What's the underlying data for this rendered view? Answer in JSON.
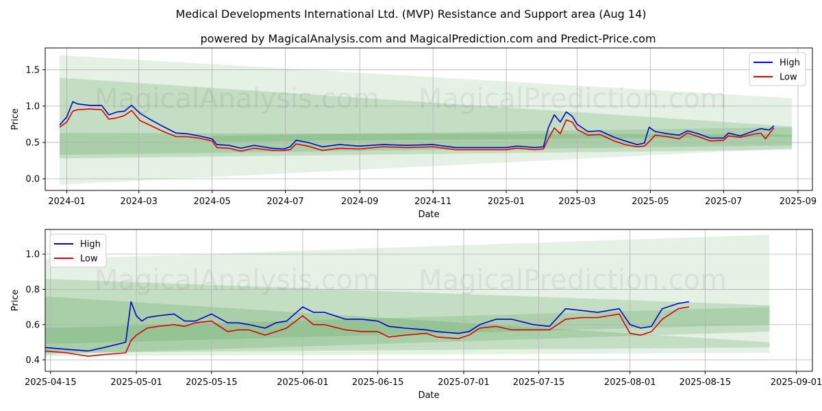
{
  "title": "Medical Developments International Ltd. (MVP) Resistance and Support area (Aug 14)",
  "subtitle": "powered by MagicalAnalysis.com and MagicalPrediction.com and Predict-Price.com",
  "watermarks": [
    "MagicalAnalysis.com",
    "MagicalPrediction.com"
  ],
  "colors": {
    "high": "#0000cc",
    "low": "#dd0000",
    "band": "#2e8b2e",
    "grid": "#b0b0b0"
  },
  "chart_data": [
    {
      "type": "line",
      "xlabel": "Date",
      "ylabel": "Price",
      "xlim": [
        "2023-12-14",
        "2025-09-13"
      ],
      "ylim": [
        -0.16,
        1.8
      ],
      "xticks": [
        "2024-01-01",
        "2024-03-01",
        "2024-05-01",
        "2024-07-01",
        "2024-09-01",
        "2024-11-01",
        "2025-01-01",
        "2025-03-01",
        "2025-05-01",
        "2025-07-01",
        "2025-09-01"
      ],
      "xtick_labels": [
        "2024-01",
        "2024-03",
        "2024-05",
        "2024-07",
        "2024-09",
        "2024-11",
        "2025-01",
        "2025-03",
        "2025-05",
        "2025-07",
        "2025-09"
      ],
      "yticks": [
        0.0,
        0.5,
        1.0,
        1.5
      ],
      "ytick_labels": [
        "0.0",
        "0.5",
        "1.0",
        "1.5"
      ],
      "legend": {
        "position": "upper right",
        "entries": [
          "High",
          "Low"
        ]
      },
      "bands": [
        {
          "x": [
            "2023-12-26",
            "2025-08-27"
          ],
          "upper": [
            1.7,
            1.11
          ],
          "lower": [
            -0.08,
            0.42
          ],
          "opacity": 0.12
        },
        {
          "x": [
            "2023-12-26",
            "2025-08-27"
          ],
          "upper": [
            1.39,
            0.72
          ],
          "lower": [
            0.28,
            0.4
          ],
          "opacity": 0.18
        },
        {
          "x": [
            "2023-12-26",
            "2025-08-27"
          ],
          "upper": [
            0.63,
            0.61
          ],
          "lower": [
            0.33,
            0.46
          ],
          "opacity": 0.18
        },
        {
          "x": [
            "2024-05-01",
            "2025-08-27"
          ],
          "upper": [
            0.59,
            0.71
          ],
          "lower": [
            0.51,
            0.58
          ],
          "opacity": 0.16
        }
      ],
      "series": [
        {
          "name": "High",
          "x": [
            "2023-12-26",
            "2024-01-01",
            "2024-01-06",
            "2024-01-10",
            "2024-01-20",
            "2024-01-30",
            "2024-02-05",
            "2024-02-12",
            "2024-02-18",
            "2024-02-24",
            "2024-03-02",
            "2024-03-10",
            "2024-03-20",
            "2024-04-01",
            "2024-04-10",
            "2024-04-20",
            "2024-05-01",
            "2024-05-05",
            "2024-05-15",
            "2024-05-25",
            "2024-06-05",
            "2024-06-20",
            "2024-06-30",
            "2024-07-05",
            "2024-07-10",
            "2024-07-20",
            "2024-08-01",
            "2024-08-15",
            "2024-09-01",
            "2024-09-20",
            "2024-10-10",
            "2024-11-01",
            "2024-11-20",
            "2024-12-10",
            "2025-01-01",
            "2025-01-10",
            "2025-01-25",
            "2025-02-01",
            "2025-02-05",
            "2025-02-10",
            "2025-02-15",
            "2025-02-20",
            "2025-02-25",
            "2025-03-01",
            "2025-03-10",
            "2025-03-20",
            "2025-04-01",
            "2025-04-10",
            "2025-04-20",
            "2025-04-26",
            "2025-04-30",
            "2025-05-05",
            "2025-05-15",
            "2025-05-25",
            "2025-06-01",
            "2025-06-10",
            "2025-06-20",
            "2025-07-01",
            "2025-07-05",
            "2025-07-15",
            "2025-07-25",
            "2025-08-01",
            "2025-08-05",
            "2025-08-08",
            "2025-08-12"
          ],
          "values": [
            0.74,
            0.85,
            1.06,
            1.03,
            1.01,
            1.01,
            0.88,
            0.92,
            0.93,
            1.01,
            0.9,
            0.82,
            0.73,
            0.63,
            0.62,
            0.59,
            0.55,
            0.47,
            0.46,
            0.42,
            0.46,
            0.42,
            0.41,
            0.44,
            0.53,
            0.5,
            0.44,
            0.47,
            0.45,
            0.47,
            0.46,
            0.47,
            0.43,
            0.43,
            0.43,
            0.45,
            0.43,
            0.44,
            0.7,
            0.88,
            0.78,
            0.92,
            0.86,
            0.75,
            0.65,
            0.66,
            0.57,
            0.52,
            0.47,
            0.49,
            0.71,
            0.65,
            0.62,
            0.6,
            0.66,
            0.62,
            0.56,
            0.56,
            0.63,
            0.59,
            0.65,
            0.69,
            0.68,
            0.67,
            0.73
          ]
        },
        {
          "name": "Low",
          "x": [
            "2023-12-26",
            "2024-01-01",
            "2024-01-06",
            "2024-01-10",
            "2024-01-20",
            "2024-01-30",
            "2024-02-05",
            "2024-02-12",
            "2024-02-18",
            "2024-02-24",
            "2024-03-02",
            "2024-03-10",
            "2024-03-20",
            "2024-04-01",
            "2024-04-10",
            "2024-04-20",
            "2024-05-01",
            "2024-05-05",
            "2024-05-15",
            "2024-05-25",
            "2024-06-05",
            "2024-06-20",
            "2024-06-30",
            "2024-07-05",
            "2024-07-10",
            "2024-07-20",
            "2024-08-01",
            "2024-08-15",
            "2024-09-01",
            "2024-09-20",
            "2024-10-10",
            "2024-11-01",
            "2024-11-20",
            "2024-12-10",
            "2025-01-01",
            "2025-01-10",
            "2025-01-25",
            "2025-02-01",
            "2025-02-05",
            "2025-02-10",
            "2025-02-15",
            "2025-02-20",
            "2025-02-25",
            "2025-03-01",
            "2025-03-10",
            "2025-03-20",
            "2025-04-01",
            "2025-04-10",
            "2025-04-20",
            "2025-04-26",
            "2025-04-30",
            "2025-05-05",
            "2025-05-15",
            "2025-05-25",
            "2025-06-01",
            "2025-06-10",
            "2025-06-20",
            "2025-07-01",
            "2025-07-05",
            "2025-07-15",
            "2025-07-25",
            "2025-08-01",
            "2025-08-05",
            "2025-08-08",
            "2025-08-12"
          ],
          "values": [
            0.71,
            0.78,
            0.93,
            0.95,
            0.96,
            0.95,
            0.82,
            0.84,
            0.87,
            0.94,
            0.8,
            0.74,
            0.66,
            0.58,
            0.58,
            0.56,
            0.52,
            0.43,
            0.42,
            0.38,
            0.42,
            0.39,
            0.39,
            0.4,
            0.48,
            0.45,
            0.39,
            0.42,
            0.41,
            0.44,
            0.43,
            0.44,
            0.4,
            0.4,
            0.4,
            0.42,
            0.4,
            0.41,
            0.55,
            0.7,
            0.62,
            0.81,
            0.78,
            0.68,
            0.6,
            0.61,
            0.52,
            0.47,
            0.44,
            0.45,
            0.51,
            0.6,
            0.58,
            0.55,
            0.63,
            0.58,
            0.52,
            0.53,
            0.59,
            0.57,
            0.61,
            0.63,
            0.55,
            0.62,
            0.7
          ]
        }
      ]
    },
    {
      "type": "line",
      "xlabel": "Date",
      "ylabel": "Price",
      "xlim": [
        "2025-04-14",
        "2025-09-04"
      ],
      "ylim": [
        0.335,
        1.14
      ],
      "xticks": [
        "2025-04-15",
        "2025-05-01",
        "2025-05-15",
        "2025-06-01",
        "2025-06-15",
        "2025-07-01",
        "2025-07-15",
        "2025-08-01",
        "2025-08-15",
        "2025-09-01"
      ],
      "xtick_labels": [
        "2025-04-15",
        "2025-05-01",
        "2025-05-15",
        "2025-06-01",
        "2025-06-15",
        "2025-07-01",
        "2025-07-15",
        "2025-08-01",
        "2025-08-15",
        "2025-09-01"
      ],
      "yticks": [
        0.4,
        0.6,
        0.8,
        1.0
      ],
      "ytick_labels": [
        "0.4",
        "0.6",
        "0.8",
        "1.0"
      ],
      "legend": {
        "position": "upper left",
        "entries": [
          "High",
          "Low"
        ]
      },
      "bands": [
        {
          "x": [
            "2025-04-14",
            "2025-08-27"
          ],
          "upper": [
            0.97,
            1.11
          ],
          "lower": [
            0.42,
            0.44
          ],
          "opacity": 0.12
        },
        {
          "x": [
            "2025-04-14",
            "2025-08-27"
          ],
          "upper": [
            0.86,
            0.71
          ],
          "lower": [
            0.43,
            0.56
          ],
          "opacity": 0.18
        },
        {
          "x": [
            "2025-04-14",
            "2025-08-27"
          ],
          "upper": [
            0.76,
            0.5
          ],
          "lower": [
            0.44,
            0.47
          ],
          "opacity": 0.18
        },
        {
          "x": [
            "2025-04-14",
            "2025-08-27"
          ],
          "upper": [
            0.58,
            0.7
          ],
          "lower": [
            0.49,
            0.6
          ],
          "opacity": 0.16
        }
      ],
      "series": [
        {
          "name": "High",
          "x": [
            "2025-04-14",
            "2025-04-18",
            "2025-04-22",
            "2025-04-25",
            "2025-04-29",
            "2025-04-30",
            "2025-05-01",
            "2025-05-02",
            "2025-05-03",
            "2025-05-05",
            "2025-05-08",
            "2025-05-10",
            "2025-05-12",
            "2025-05-15",
            "2025-05-18",
            "2025-05-20",
            "2025-05-22",
            "2025-05-25",
            "2025-05-27",
            "2025-05-29",
            "2025-06-01",
            "2025-06-03",
            "2025-06-05",
            "2025-06-09",
            "2025-06-12",
            "2025-06-15",
            "2025-06-17",
            "2025-06-20",
            "2025-06-24",
            "2025-06-26",
            "2025-06-30",
            "2025-07-02",
            "2025-07-04",
            "2025-07-07",
            "2025-07-10",
            "2025-07-14",
            "2025-07-17",
            "2025-07-20",
            "2025-07-23",
            "2025-07-26",
            "2025-07-28",
            "2025-07-30",
            "2025-08-01",
            "2025-08-03",
            "2025-08-05",
            "2025-08-07",
            "2025-08-10",
            "2025-08-12"
          ],
          "values": [
            0.47,
            0.46,
            0.45,
            0.47,
            0.5,
            0.73,
            0.65,
            0.62,
            0.64,
            0.65,
            0.66,
            0.62,
            0.62,
            0.66,
            0.61,
            0.61,
            0.6,
            0.58,
            0.61,
            0.62,
            0.7,
            0.67,
            0.67,
            0.63,
            0.63,
            0.62,
            0.59,
            0.58,
            0.57,
            0.56,
            0.55,
            0.56,
            0.6,
            0.63,
            0.63,
            0.6,
            0.59,
            0.69,
            0.68,
            0.67,
            0.68,
            0.69,
            0.6,
            0.58,
            0.59,
            0.69,
            0.72,
            0.73
          ]
        },
        {
          "name": "Low",
          "x": [
            "2025-04-14",
            "2025-04-18",
            "2025-04-22",
            "2025-04-25",
            "2025-04-29",
            "2025-04-30",
            "2025-05-01",
            "2025-05-02",
            "2025-05-03",
            "2025-05-05",
            "2025-05-08",
            "2025-05-10",
            "2025-05-12",
            "2025-05-15",
            "2025-05-18",
            "2025-05-20",
            "2025-05-22",
            "2025-05-25",
            "2025-05-27",
            "2025-05-29",
            "2025-06-01",
            "2025-06-03",
            "2025-06-05",
            "2025-06-09",
            "2025-06-12",
            "2025-06-15",
            "2025-06-17",
            "2025-06-20",
            "2025-06-24",
            "2025-06-26",
            "2025-06-30",
            "2025-07-02",
            "2025-07-04",
            "2025-07-07",
            "2025-07-10",
            "2025-07-14",
            "2025-07-17",
            "2025-07-20",
            "2025-07-23",
            "2025-07-26",
            "2025-07-28",
            "2025-07-30",
            "2025-08-01",
            "2025-08-03",
            "2025-08-05",
            "2025-08-07",
            "2025-08-10",
            "2025-08-12"
          ],
          "values": [
            0.45,
            0.44,
            0.42,
            0.43,
            0.44,
            0.51,
            0.54,
            0.56,
            0.58,
            0.59,
            0.6,
            0.59,
            0.61,
            0.62,
            0.56,
            0.57,
            0.57,
            0.54,
            0.56,
            0.58,
            0.65,
            0.6,
            0.6,
            0.57,
            0.56,
            0.56,
            0.53,
            0.54,
            0.55,
            0.53,
            0.52,
            0.54,
            0.58,
            0.59,
            0.57,
            0.57,
            0.57,
            0.63,
            0.64,
            0.64,
            0.65,
            0.66,
            0.55,
            0.54,
            0.56,
            0.63,
            0.69,
            0.7
          ]
        }
      ]
    }
  ]
}
